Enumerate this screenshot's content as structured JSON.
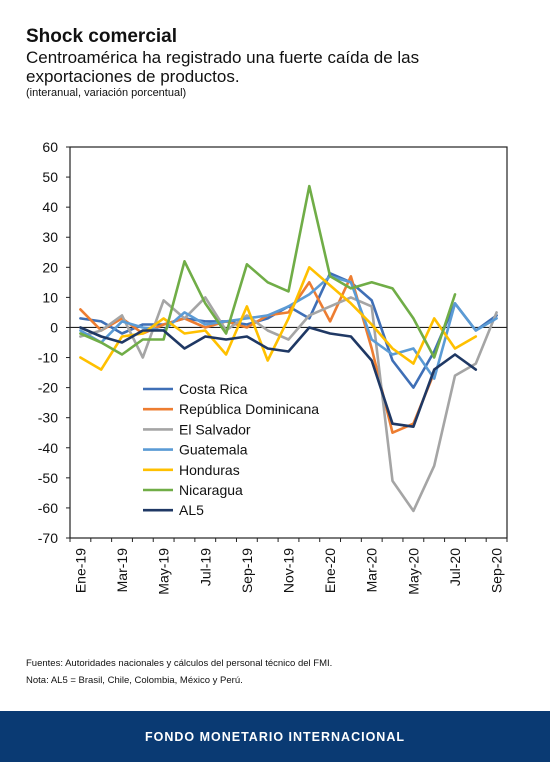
{
  "header": {
    "title": "Shock comercial",
    "subtitle": "Centroamérica ha registrado una fuerte caída de las exportaciones de productos.",
    "units": "(interanual, variación porcentual)"
  },
  "notes": {
    "source": "Fuentes: Autoridades nacionales y cálculos del personal técnico del FMI.",
    "note": "Nota: AL5 = Brasil, Chile, Colombia, México y Perú."
  },
  "footer": {
    "label": "FONDO MONETARIO INTERNACIONAL"
  },
  "chart_data": {
    "type": "line",
    "x": [
      "Ene-19",
      "Feb-19",
      "Mar-19",
      "Abr-19",
      "May-19",
      "Jun-19",
      "Jul-19",
      "Ago-19",
      "Sep-19",
      "Oct-19",
      "Nov-19",
      "Dic-19",
      "Ene-20",
      "Feb-20",
      "Mar-20",
      "Abr-20",
      "May-20",
      "Jun-20",
      "Jul-20",
      "Ago-20",
      "Sep-20"
    ],
    "xtick_labels": [
      "Ene-19",
      "",
      "Mar-19",
      "",
      "May-19",
      "",
      "Jul-19",
      "",
      "Sep-19",
      "",
      "Nov-19",
      "",
      "Ene-20",
      "",
      "Mar-20",
      "",
      "May-20",
      "",
      "Jul-20",
      "",
      "Sep-20"
    ],
    "ylim": [
      -70,
      60
    ],
    "yticks": [
      60,
      50,
      40,
      30,
      20,
      10,
      0,
      -10,
      -20,
      -30,
      -40,
      -50,
      -60,
      -70
    ],
    "grid": false,
    "legend_position": "lower-left",
    "series": [
      {
        "name": "Costa Rica",
        "color": "#3f6fb6",
        "values": [
          3,
          2,
          -2,
          1,
          1,
          3,
          2,
          2,
          1,
          3,
          7,
          3,
          18,
          15,
          9,
          -11,
          -20,
          -8,
          8,
          -1,
          4
        ]
      },
      {
        "name": "República Dominicana",
        "color": "#ed7d31",
        "values": [
          6,
          -1,
          3,
          -2,
          1,
          3,
          0,
          2,
          0,
          4,
          5,
          15,
          2,
          17,
          -7,
          -35,
          -32,
          -15,
          null,
          null,
          null
        ]
      },
      {
        "name": "El Salvador",
        "color": "#a5a5a5",
        "values": [
          -3,
          -1,
          4,
          -10,
          9,
          3,
          10,
          -1,
          4,
          -1,
          -4,
          4,
          7,
          10,
          7,
          -51,
          -61,
          -46,
          -16,
          -12,
          5
        ]
      },
      {
        "name": "Guatemala",
        "color": "#5b9bd5",
        "values": [
          -1,
          -5,
          2,
          0,
          -1,
          5,
          1,
          2,
          3,
          4,
          7,
          11,
          17,
          15,
          -4,
          -9,
          -7,
          -17,
          8,
          -1,
          3
        ]
      },
      {
        "name": "Honduras",
        "color": "#ffc000",
        "values": [
          -10,
          -14,
          -3,
          -2,
          3,
          -2,
          -1,
          -9,
          7,
          -11,
          3,
          20,
          14,
          8,
          1,
          -7,
          -12,
          3,
          -7,
          -3,
          null
        ]
      },
      {
        "name": "Nicaragua",
        "color": "#70ad47",
        "values": [
          -2,
          -5,
          -9,
          -4,
          -4,
          22,
          8,
          -2,
          21,
          15,
          12,
          47,
          17,
          13,
          15,
          13,
          3,
          -10,
          11,
          null,
          null
        ]
      },
      {
        "name": "AL5",
        "color": "#1f3864",
        "values": [
          0,
          -3,
          -5,
          -1,
          -1,
          -7,
          -3,
          -4,
          -3,
          -7,
          -8,
          0,
          -2,
          -3,
          -11,
          -32,
          -33,
          -14,
          -9,
          -14,
          null
        ]
      }
    ]
  }
}
